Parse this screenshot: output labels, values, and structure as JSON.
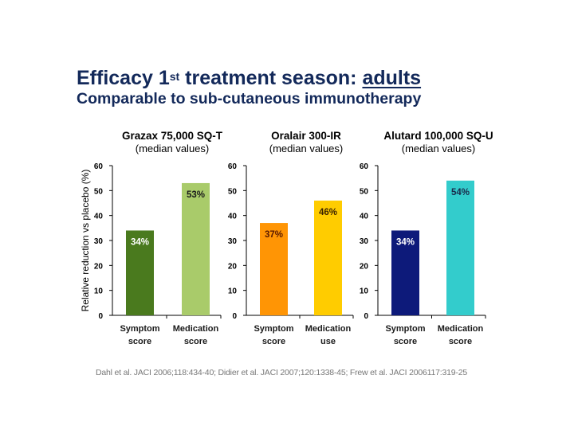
{
  "slide": {
    "title_prefix": "Efficacy 1",
    "title_sup": "st",
    "title_middle": " treatment season: ",
    "title_underlined": "adults",
    "subtitle": "Comparable to sub-cutaneous immunotherapy",
    "references": "Dahl et al. JACI 2006;118:434-40;  Didier et al. JACI 2007;120:1338-45;  Frew et al. JACI 2006117:319-25"
  },
  "chart_data": [
    {
      "type": "bar",
      "title": "Grazax 75,000 SQ-T",
      "subtitle": "(median values)",
      "ylabel": "Relative reduction vs placebo (%)",
      "xlabel": "",
      "ylim": [
        0,
        60
      ],
      "yticks": [
        0,
        10,
        20,
        30,
        40,
        50,
        60
      ],
      "categories": [
        [
          "Symptom",
          "score"
        ],
        [
          "Medication",
          "score"
        ]
      ],
      "values": [
        34,
        53
      ],
      "data_labels": [
        "34%",
        "53%"
      ],
      "colors": [
        "#4a7a1e",
        "#a9cb6a"
      ],
      "label_colors": [
        "#ffffff",
        "#1a1a1a"
      ],
      "grid": false
    },
    {
      "type": "bar",
      "title": "Oralair 300-IR",
      "subtitle": "(median values)",
      "ylabel": "",
      "xlabel": "",
      "ylim": [
        0,
        60
      ],
      "yticks": [
        0,
        10,
        20,
        30,
        40,
        50,
        60
      ],
      "categories": [
        [
          "Symptom",
          "score"
        ],
        [
          "Medication",
          "use"
        ]
      ],
      "values": [
        37,
        46
      ],
      "data_labels": [
        "37%",
        "46%"
      ],
      "colors": [
        "#ff9505",
        "#ffcc00"
      ],
      "label_colors": [
        "#5a1a00",
        "#3a2200"
      ],
      "grid": false
    },
    {
      "type": "bar",
      "title": "Alutard 100,000 SQ-U",
      "subtitle": "(median values)",
      "ylabel": "",
      "xlabel": "",
      "ylim": [
        0,
        60
      ],
      "yticks": [
        0,
        10,
        20,
        30,
        40,
        50,
        60
      ],
      "categories": [
        [
          "Symptom",
          "score"
        ],
        [
          "Medication",
          "score"
        ]
      ],
      "values": [
        34,
        54
      ],
      "data_labels": [
        "34%",
        "54%"
      ],
      "colors": [
        "#0d1a7a",
        "#33cccc"
      ],
      "label_colors": [
        "#ffffff",
        "#1a2a4a"
      ],
      "grid": false
    }
  ]
}
